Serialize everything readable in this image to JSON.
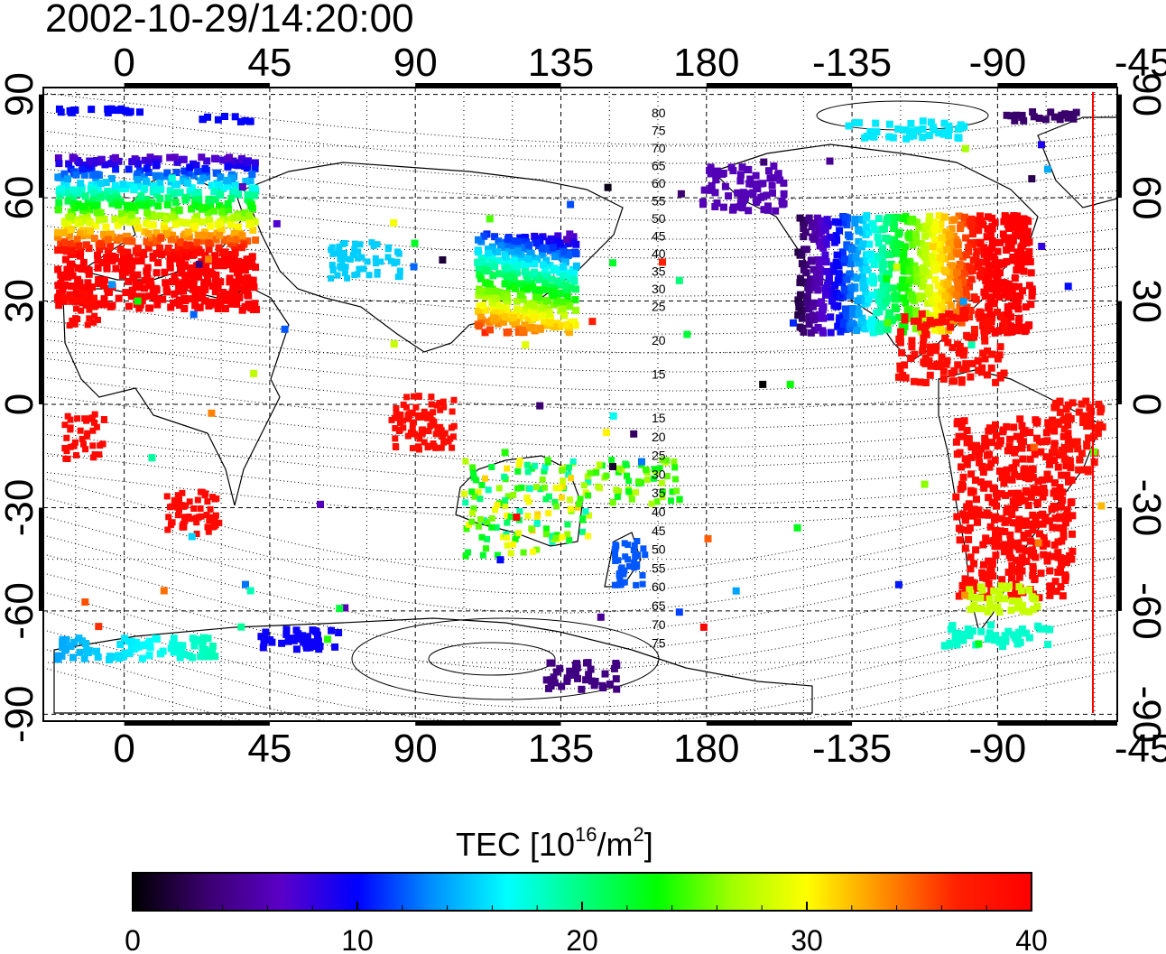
{
  "title": "2002-10-29/14:20:00",
  "map": {
    "lon_ticks_top": [
      "0",
      "45",
      "90",
      "135",
      "180",
      "-135",
      "-90",
      "-45"
    ],
    "lon_ticks_bottom": [
      "0",
      "45",
      "90",
      "135",
      "180",
      "-135",
      "-90",
      "-45"
    ],
    "lat_ticks_left": [
      "90",
      "60",
      "30",
      "0",
      "-30",
      "-60",
      "-90"
    ],
    "lat_ticks_right": [
      "90",
      "60",
      "30",
      "0",
      "-30",
      "-60",
      "-90"
    ],
    "lon_range": [
      -25,
      307
    ],
    "lat_range": [
      -92,
      92
    ],
    "grid": "dotted 15 degree graticule, dashed at 45/90 intervals",
    "terminator_meridian": "red vertical line",
    "contour_labels_north": [
      "80",
      "75",
      "70",
      "65",
      "60",
      "55",
      "50",
      "45",
      "40",
      "35",
      "30",
      "25",
      "20",
      "15"
    ],
    "contour_labels_south": [
      "15",
      "20",
      "25",
      "30",
      "35",
      "40",
      "45",
      "50",
      "55",
      "60",
      "65",
      "70",
      "75"
    ]
  },
  "colorbar": {
    "title_main": "TEC  [10",
    "title_sup1": "16",
    "title_mid": "/m",
    "title_sup2": "2",
    "title_end": "]",
    "tick_labels": [
      "0",
      "10",
      "20",
      "30",
      "40"
    ],
    "range": [
      0,
      40
    ],
    "colormap": [
      "#000000",
      "#3b0070",
      "#5a00c8",
      "#0000ff",
      "#0090ff",
      "#00ffff",
      "#00ff80",
      "#00ff00",
      "#a0ff00",
      "#ffff00",
      "#ff9000",
      "#ff2000",
      "#ff0000"
    ]
  }
}
